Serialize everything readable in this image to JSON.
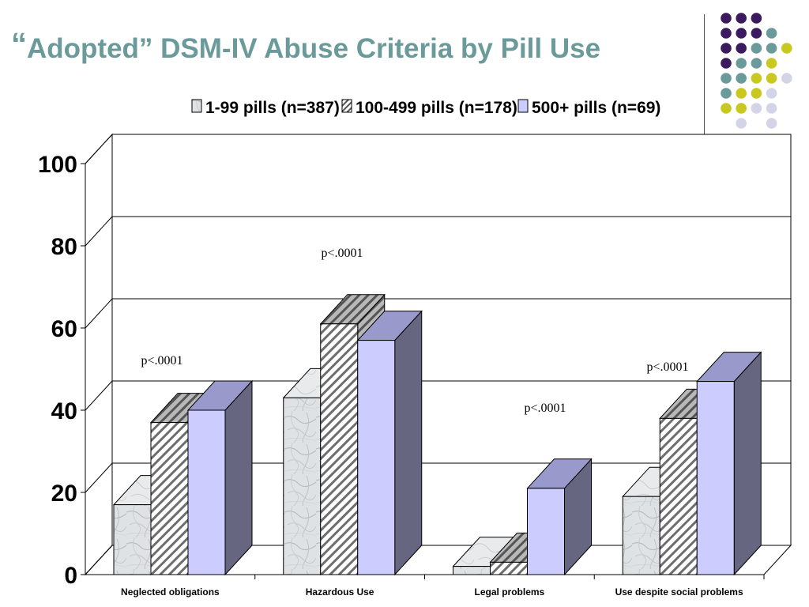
{
  "slide": {
    "title_quote": "“",
    "title_text": "Adopted” DSM-IV Abuse Criteria by Pill Use"
  },
  "colors": {
    "title": "#6b9a9a",
    "series1_face": "#dfe2e4",
    "series2_stripe": "#6e6e6e",
    "series3_face": "#ccccff",
    "series3_side": "#666680",
    "series3_top": "#9999cc",
    "dot_purple": "#3c1a5e",
    "dot_teal": "#6b9a9a",
    "dot_yellow": "#c8c820",
    "dot_lavender": "#d4d4e8"
  },
  "chart_data": {
    "type": "bar",
    "categories": [
      "Neglected obligations",
      "Hazardous Use",
      "Legal problems",
      "Use despite social problems"
    ],
    "series": [
      {
        "name": "1-99 pills (n=387)",
        "values": [
          17,
          43,
          2,
          19
        ]
      },
      {
        "name": "100-499 pills (n=178)",
        "values": [
          37,
          61,
          3,
          38
        ]
      },
      {
        "name": "500+ pills (n=69)",
        "values": [
          40,
          57,
          21,
          47
        ]
      }
    ],
    "y_ticks": [
      "0",
      "20",
      "40",
      "60",
      "80",
      "100"
    ],
    "ylim": [
      0,
      100
    ],
    "grid": true,
    "legend_position": "top",
    "annotations": [
      "p<.0001",
      "p<.0001",
      "p<.0001",
      "p<.0001"
    ]
  }
}
